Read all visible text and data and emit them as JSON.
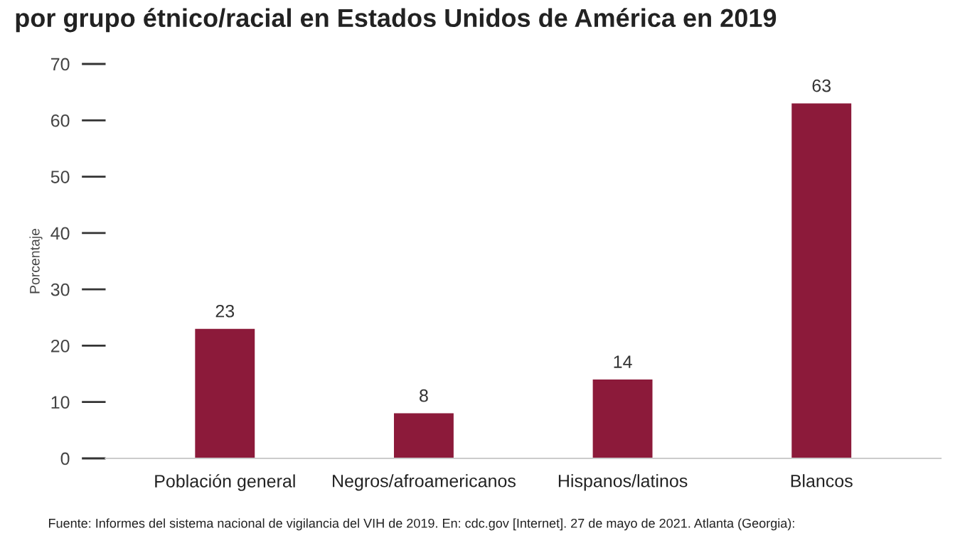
{
  "chart_data": {
    "type": "bar",
    "title": "por grupo étnico/racial en Estados Unidos de América en 2019",
    "ylabel": "Porcentaje",
    "categories": [
      "Población general",
      "Negros/afroamericanos",
      "Hispanos/latinos",
      "Blancos"
    ],
    "values": [
      23,
      8,
      14,
      63
    ],
    "color": "#8c1a3a",
    "data_labels": true,
    "ylim": [
      0,
      70
    ],
    "yticks": [
      0,
      10,
      20,
      30,
      40,
      50,
      60,
      70
    ],
    "grid": false,
    "annotations": [
      "Fuente: Informes del sistema nacional de vigilancia del VIH de 2019. En: cdc.gov [Internet]. 27 de mayo de 2021. Atlanta (Georgia):"
    ]
  }
}
